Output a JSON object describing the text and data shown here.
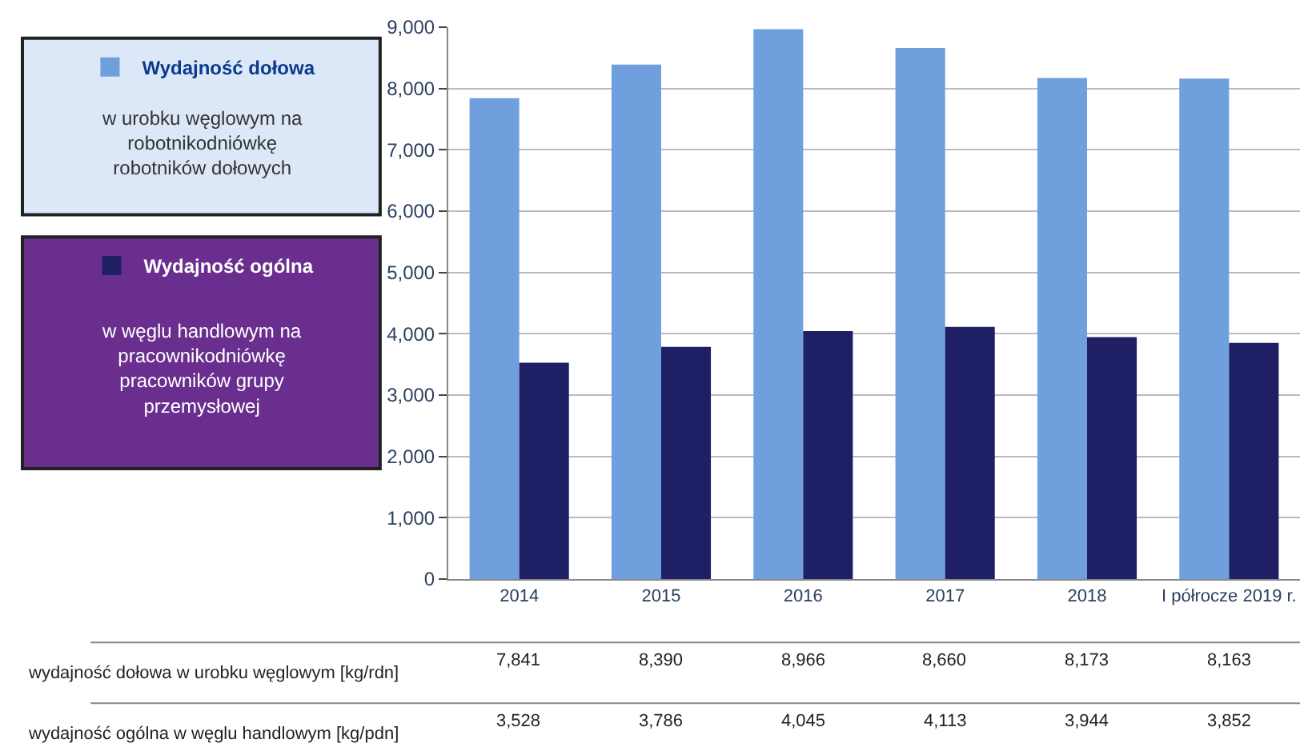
{
  "chart_data": {
    "type": "bar",
    "categories": [
      "2014",
      "2015",
      "2016",
      "2017",
      "2018",
      "I półrocze 2019 r."
    ],
    "series": [
      {
        "name": "Wydajność dołowa",
        "color": "#6f9fdc",
        "values": [
          7841,
          8390,
          8966,
          8660,
          8173,
          8163
        ]
      },
      {
        "name": "Wydajność ogólna",
        "color": "#1f1f66",
        "values": [
          3528,
          3786,
          4045,
          4113,
          3944,
          3852
        ]
      }
    ],
    "annotations": [
      "w urobku węglowym na robotnikodniówkę robotników dołowych",
      "w węglu handlowym na pracownikodniówkę pracowników grupy przemysłowej",
      "wydajność dołowa w urobku węglowym [kg/rdn]",
      "wydajność ogólna w węglu handlowym [kg/pdn]"
    ],
    "value_labels": [
      [
        "7,841",
        "8,390",
        "8,966",
        "8,660",
        "8,173",
        "8,163"
      ],
      [
        "3,528",
        "3,786",
        "4,045",
        "4,113",
        "3,944",
        "3,852"
      ]
    ],
    "ylim": [
      0,
      9000
    ],
    "yticks": [
      0,
      {
        "value": 1000,
        "label": "1,000"
      },
      {
        "value": 2000,
        "label": "2,000"
      },
      {
        "value": 3000,
        "label": "3,000"
      },
      {
        "value": 4000,
        "label": "4,000"
      },
      {
        "value": 5000,
        "label": "5,000"
      },
      {
        "value": 6000,
        "label": "6,000"
      },
      {
        "value": 7000,
        "label": "7,000"
      },
      {
        "value": 8000,
        "label": "8,000"
      },
      {
        "value": 9000,
        "label": "9,000"
      }
    ],
    "grid": "y",
    "legend": "left"
  }
}
